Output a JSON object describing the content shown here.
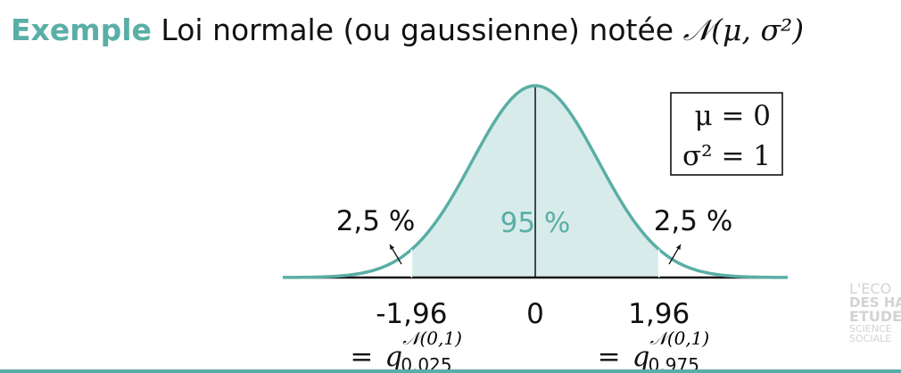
{
  "header": {
    "keyword": "Exemple",
    "title": "Loi normale (ou gaussienne) notée",
    "notation": "𝒩(μ, σ²)"
  },
  "colors": {
    "accent": "#5aaea6",
    "fill": "#d7ecea",
    "ink": "#111111",
    "logo": "#d3d3d3"
  },
  "chart_data": {
    "type": "area",
    "distribution": "normal",
    "mean": 0,
    "variance": 1,
    "xlim": [
      -4,
      4
    ],
    "shaded_interval": [
      -1.96,
      1.96
    ],
    "legend": {
      "position": "top-right",
      "lines": [
        "μ = 0",
        "σ² = 1"
      ]
    },
    "ticks": [
      {
        "x": -1.96,
        "label": "-1,96",
        "quantile": "0,025"
      },
      {
        "x": 0,
        "label": "0"
      },
      {
        "x": 1.96,
        "label": "1,96",
        "quantile": "0,975"
      }
    ],
    "annotations": {
      "center": "95 %",
      "left_tail": "2,5 %",
      "right_tail": "2,5 %"
    },
    "quantile_symbol": "q",
    "quantile_law": "𝒩(0,1)",
    "equals": "="
  },
  "logo": {
    "lines": [
      "L'ECO",
      "DES HAU",
      "ETUDE",
      "SCIENCE",
      "SOCIALE"
    ]
  }
}
